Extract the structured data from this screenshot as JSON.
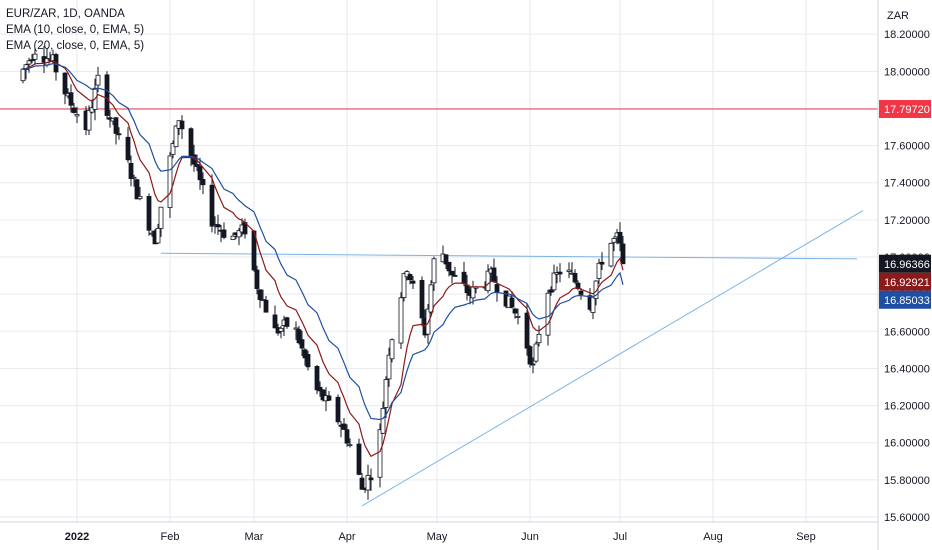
{
  "chart_data": {
    "type": "candlestick",
    "title": "EUR/ZAR, 1D, OANDA",
    "indicators": [
      {
        "name": "EMA (10, close, 0, EMA, 5)",
        "color": "#8b1a1a"
      },
      {
        "name": "EMA (20, close, 0, EMA, 5)",
        "color": "#1f4fa3"
      }
    ],
    "currency": "ZAR",
    "ylim": [
      15.6,
      18.3
    ],
    "y_ticks": [
      "18.20000",
      "18.00000",
      "17.80000",
      "17.60000",
      "17.40000",
      "17.20000",
      "17.00000",
      "16.80000",
      "16.60000",
      "16.40000",
      "16.20000",
      "16.00000",
      "15.80000",
      "15.60000"
    ],
    "x_ticks": [
      {
        "day": 0,
        "label": "2022",
        "bold": true
      },
      {
        "day": 31,
        "label": "Feb"
      },
      {
        "day": 59,
        "label": "Mar"
      },
      {
        "day": 90,
        "label": "Apr"
      },
      {
        "day": 120,
        "label": "May"
      },
      {
        "day": 151,
        "label": "Jun"
      },
      {
        "day": 181,
        "label": "Jul"
      },
      {
        "day": 212,
        "label": "Aug"
      },
      {
        "day": 243,
        "label": "Sep"
      }
    ],
    "x_axis_unit": "days since 2022-01-01",
    "price_path": [
      [
        -20,
        17.95
      ],
      [
        -14,
        18.12
      ],
      [
        -8,
        18.05
      ],
      [
        -3,
        17.85
      ],
      [
        3,
        17.7
      ],
      [
        7,
        17.95
      ],
      [
        11,
        17.75
      ],
      [
        16,
        17.55
      ],
      [
        21,
        17.3
      ],
      [
        26,
        17.1
      ],
      [
        30,
        17.45
      ],
      [
        34,
        17.75
      ],
      [
        39,
        17.5
      ],
      [
        45,
        17.2
      ],
      [
        51,
        17.1
      ],
      [
        56,
        17.15
      ],
      [
        60,
        16.85
      ],
      [
        66,
        16.6
      ],
      [
        72,
        16.65
      ],
      [
        79,
        16.3
      ],
      [
        84,
        16.2
      ],
      [
        88,
        16.1
      ],
      [
        92,
        15.95
      ],
      [
        95,
        15.75
      ],
      [
        100,
        15.9
      ],
      [
        104,
        16.5
      ],
      [
        110,
        16.95
      ],
      [
        116,
        16.6
      ],
      [
        120,
        17.1
      ],
      [
        125,
        16.9
      ],
      [
        131,
        16.8
      ],
      [
        138,
        16.9
      ],
      [
        144,
        16.75
      ],
      [
        148,
        16.65
      ],
      [
        152,
        16.4
      ],
      [
        156,
        16.8
      ],
      [
        162,
        16.95
      ],
      [
        167,
        16.85
      ],
      [
        171,
        16.75
      ],
      [
        176,
        17.05
      ],
      [
        180,
        17.1
      ],
      [
        183,
        16.96366
      ]
    ],
    "price_lines": [
      {
        "name": "resistance",
        "value": 17.7972,
        "color": "#f23645",
        "label": "17.79720"
      }
    ],
    "trendlines": [
      {
        "name": "neckline",
        "p1": [
          28,
          17.02
        ],
        "p2": [
          260,
          16.99
        ],
        "color": "#7cb3e6"
      },
      {
        "name": "rising-support",
        "p1": [
          95,
          15.66
        ],
        "p2": [
          262,
          17.25
        ],
        "color": "#7cb3e6"
      }
    ],
    "last_values": [
      {
        "label": "16.96366",
        "value": 16.96366,
        "color": "#131722"
      },
      {
        "label": "16.92921",
        "value": 16.92921,
        "color": "#8b1a1a"
      },
      {
        "label": "16.85033",
        "value": 16.85033,
        "color": "#1f4fa3"
      }
    ],
    "colors": {
      "up": "#ffffff",
      "down": "#131722",
      "grid": "#e8eaf0"
    }
  }
}
